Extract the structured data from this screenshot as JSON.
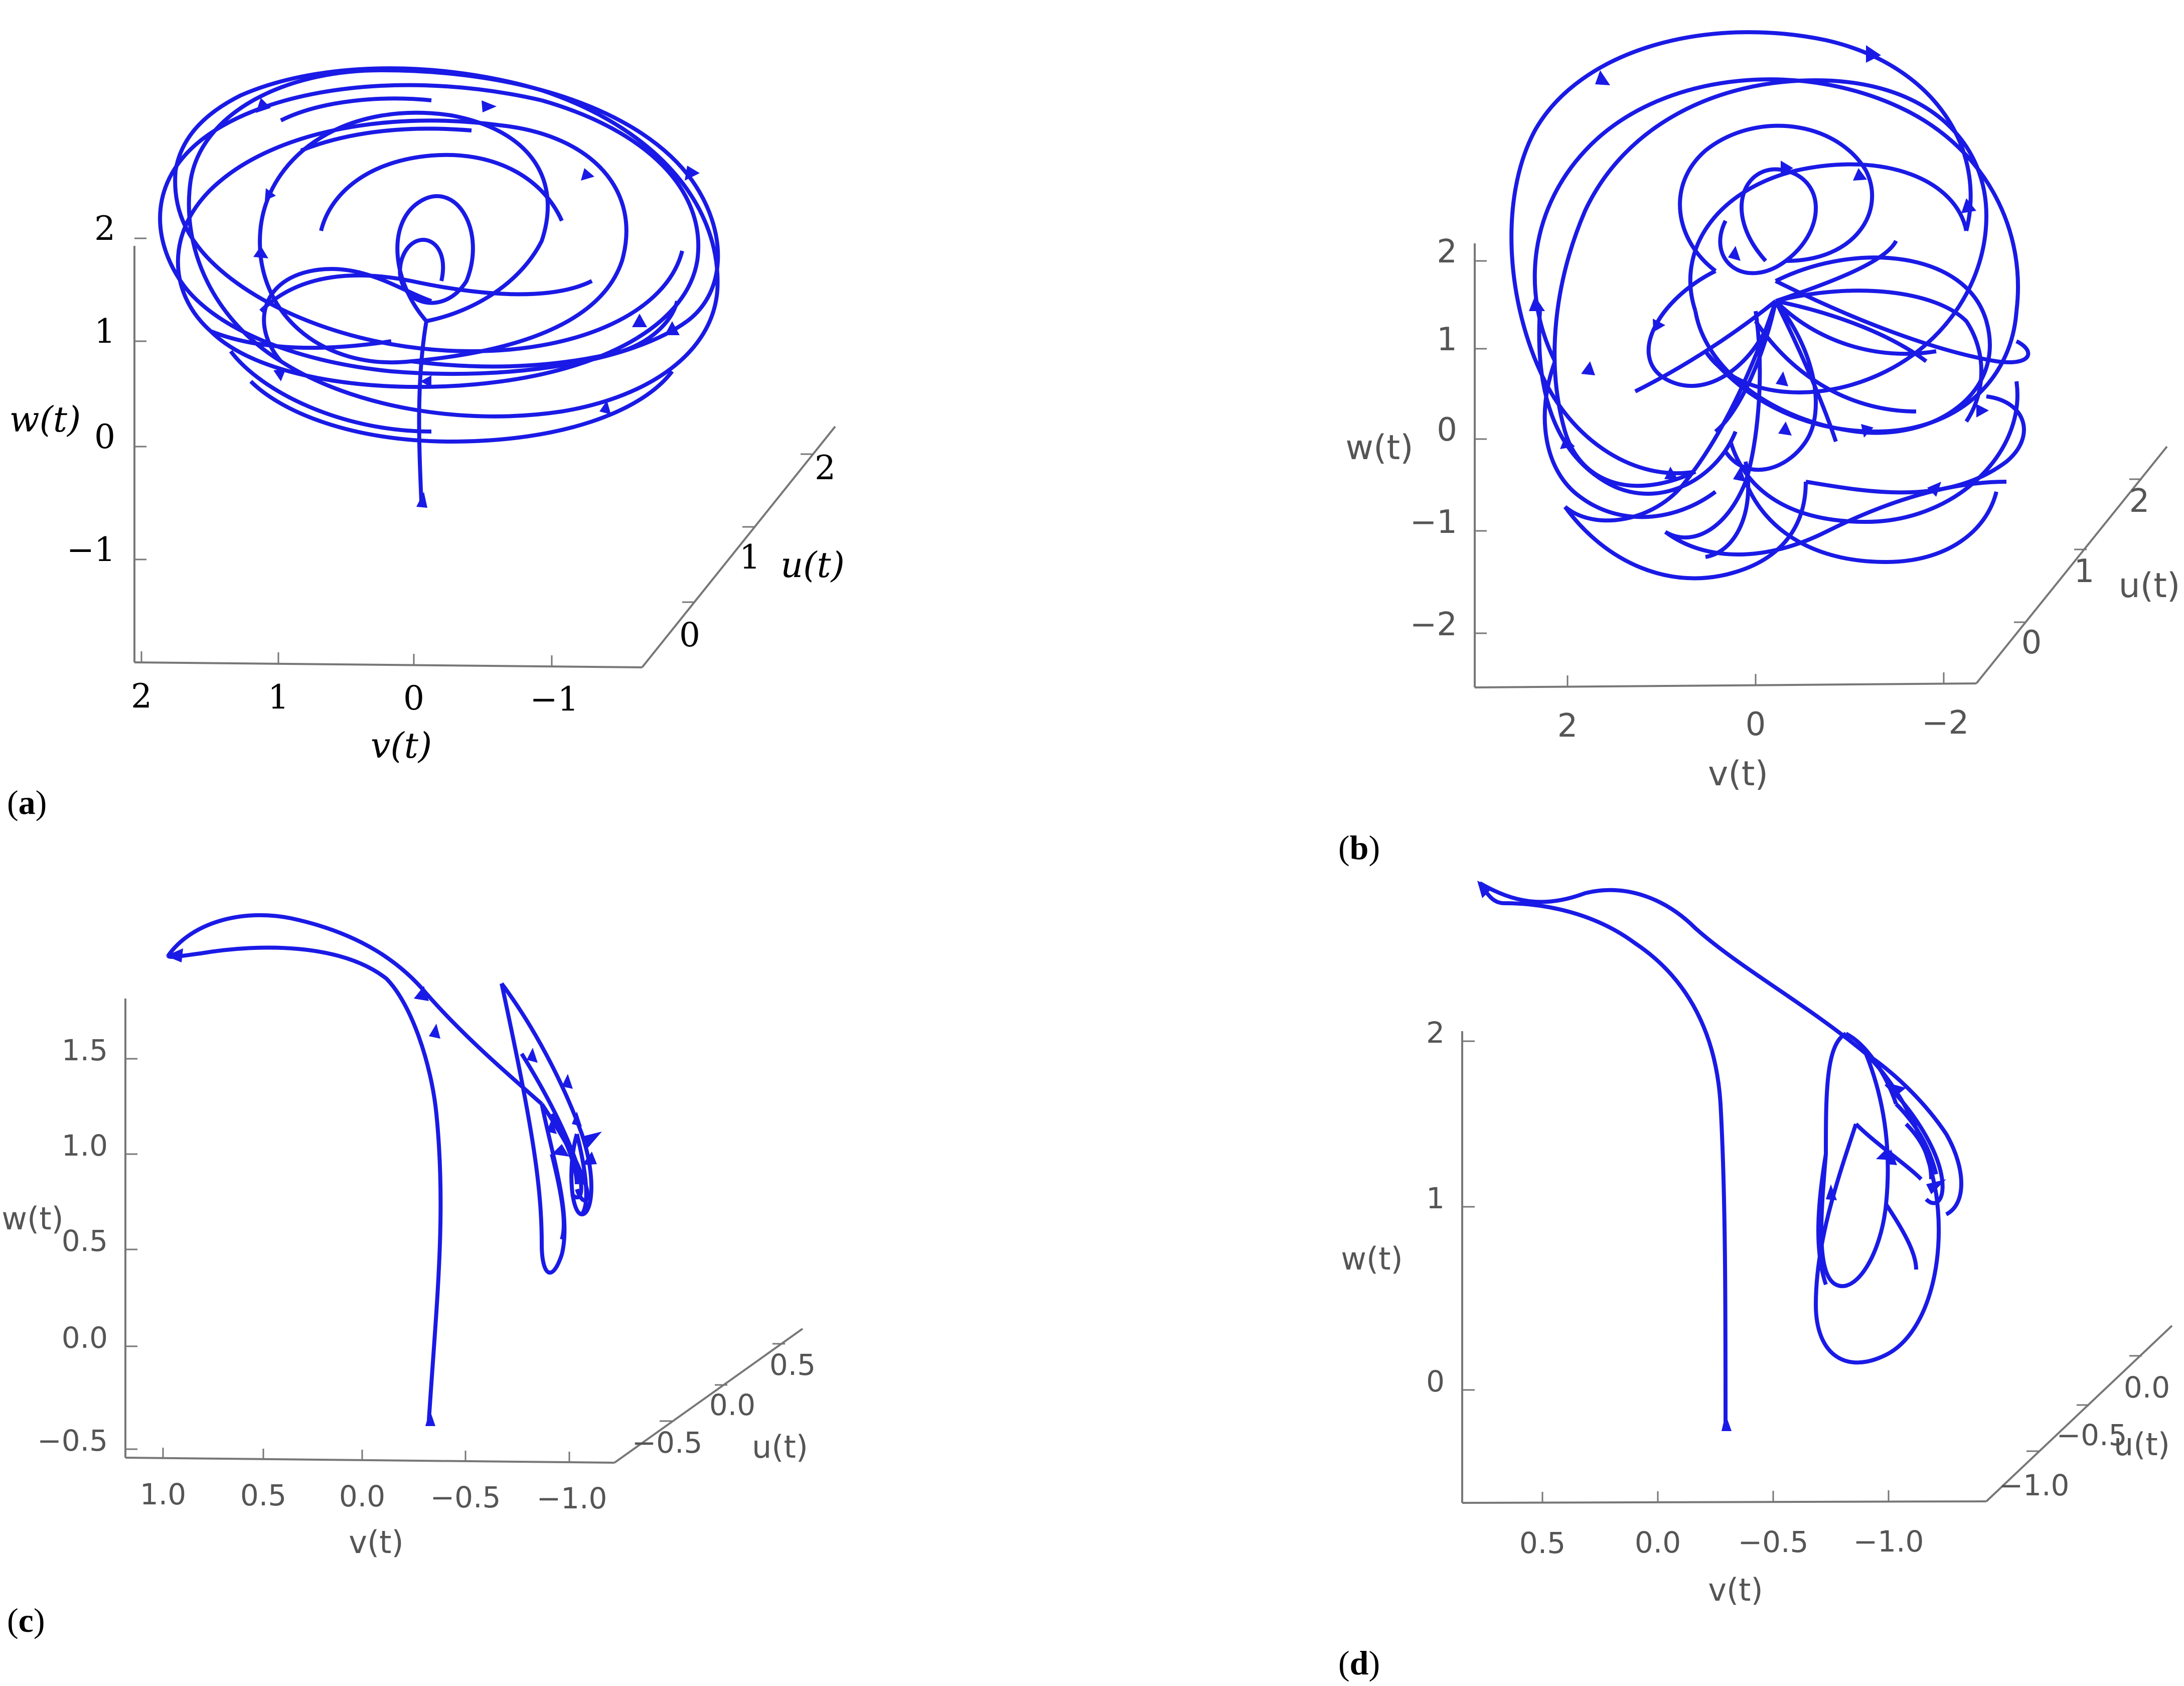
{
  "chart_data": [
    {
      "panel": "a",
      "type": "line",
      "style": "3d-phase-trajectory",
      "label_font": "serif",
      "label_color": "#000000",
      "series_color": "#1a1ae6",
      "axes": {
        "v": {
          "label": "v(t)",
          "ticks": [
            "2",
            "1",
            "0",
            "−1"
          ]
        },
        "u": {
          "label": "u(t)",
          "ticks": [
            "0",
            "1",
            "2"
          ]
        },
        "w": {
          "label": "w(t)",
          "ticks": [
            "2",
            "1",
            "0",
            "−1"
          ]
        }
      }
    },
    {
      "panel": "b",
      "type": "line",
      "style": "3d-phase-trajectory",
      "label_font": "sans",
      "label_color": "#555555",
      "series_color": "#1a1ae6",
      "axes": {
        "v": {
          "label": "v(t)",
          "ticks": [
            "2",
            "0",
            "−2"
          ]
        },
        "u": {
          "label": "u(t)",
          "ticks": [
            "0",
            "1",
            "2"
          ]
        },
        "w": {
          "label": "w(t)",
          "ticks": [
            "2",
            "1",
            "0",
            "−1",
            "−2"
          ]
        }
      }
    },
    {
      "panel": "c",
      "type": "line",
      "style": "3d-phase-trajectory",
      "label_font": "sans",
      "label_color": "#555555",
      "series_color": "#1a1ae6",
      "axes": {
        "v": {
          "label": "v(t)",
          "ticks": [
            "1.0",
            "0.5",
            "0.0",
            "−0.5",
            "−1.0"
          ]
        },
        "u": {
          "label": "u(t)",
          "ticks": [
            "−0.5",
            "0.0",
            "0.5"
          ]
        },
        "w": {
          "label": "w(t)",
          "ticks": [
            "1.5",
            "1.0",
            "0.5",
            "0.0",
            "−0.5"
          ]
        }
      }
    },
    {
      "panel": "d",
      "type": "line",
      "style": "3d-phase-trajectory",
      "label_font": "sans",
      "label_color": "#555555",
      "series_color": "#1a1ae6",
      "axes": {
        "v": {
          "label": "v(t)",
          "ticks": [
            "0.5",
            "0.0",
            "−0.5",
            "−1.0"
          ]
        },
        "u": {
          "label": "u(t)",
          "ticks": [
            "−1.0",
            "−0.5",
            "0.0"
          ]
        },
        "w": {
          "label": "w(t)",
          "ticks": [
            "2",
            "1",
            "0"
          ]
        }
      }
    }
  ],
  "panel_labels": {
    "a": {
      "open": "(",
      "letter": "a",
      "close": ")"
    },
    "b": {
      "open": "(",
      "letter": "b",
      "close": ")"
    },
    "c": {
      "open": "(",
      "letter": "c",
      "close": ")"
    },
    "d": {
      "open": "(",
      "letter": "d",
      "close": ")"
    }
  }
}
